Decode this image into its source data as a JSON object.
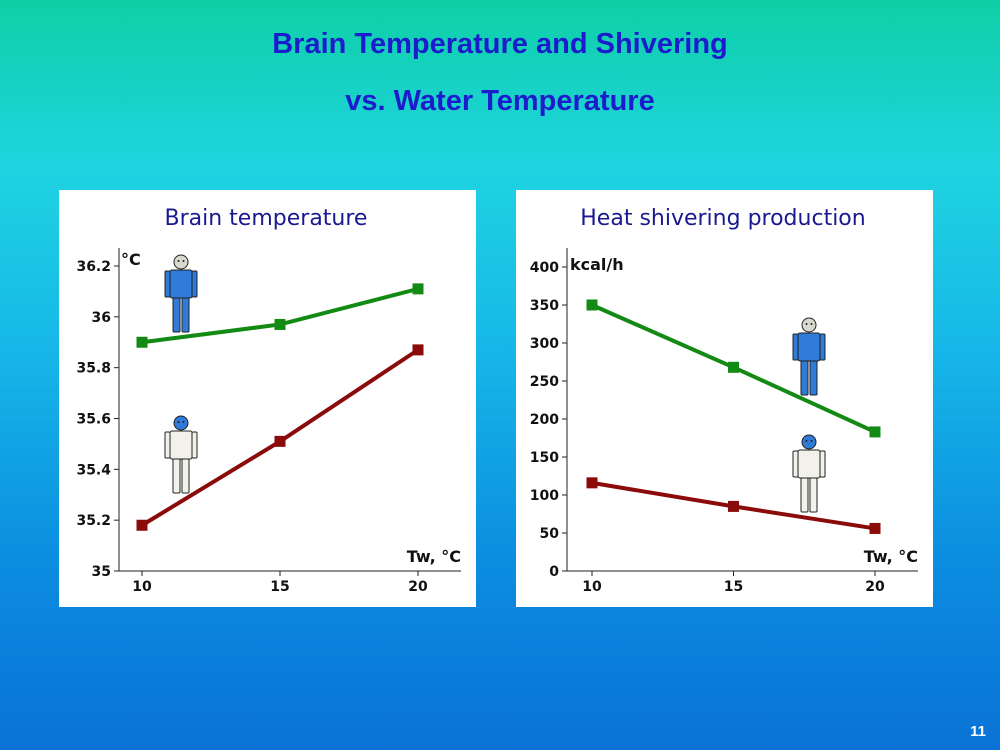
{
  "slide": {
    "title_line1": "Brain Temperature and Shivering",
    "title_line2": "vs. Water Temperature",
    "page_number": "11"
  },
  "colors": {
    "green_series": "#138a13",
    "red_series": "#8b0a0a",
    "figure_blue": "#2f7bd8",
    "figure_white": "#f2f2ea"
  },
  "chart_data": [
    {
      "type": "line",
      "title": "Brain temperature",
      "ylabel": "°C",
      "xlabel": "Tw, °C",
      "x": [
        10,
        15,
        20
      ],
      "xlim": [
        10,
        20
      ],
      "ylim": [
        35,
        36.2
      ],
      "yticks": [
        35,
        35.2,
        35.4,
        35.6,
        35.8,
        36,
        36.2
      ],
      "ytick_labels": [
        "35",
        "35.2",
        "35.4",
        "35.6",
        "35.8",
        "36",
        "36.2"
      ],
      "xticks": [
        10,
        15,
        20
      ],
      "xtick_labels": [
        "10",
        "15",
        "20"
      ],
      "grid": false,
      "series": [
        {
          "color": "green",
          "values": [
            35.9,
            35.97,
            36.11
          ]
        },
        {
          "color": "red",
          "values": [
            35.18,
            35.51,
            35.87
          ]
        }
      ]
    },
    {
      "type": "line",
      "title": "Heat shivering production",
      "ylabel": "kcal/h",
      "xlabel": "Tw, °C",
      "x": [
        10,
        15,
        20
      ],
      "xlim": [
        10,
        20
      ],
      "ylim": [
        0,
        400
      ],
      "yticks": [
        0,
        50,
        100,
        150,
        200,
        250,
        300,
        350,
        400
      ],
      "ytick_labels": [
        "0",
        "50",
        "100",
        "150",
        "200",
        "250",
        "300",
        "350",
        "400"
      ],
      "xticks": [
        10,
        15,
        20
      ],
      "xtick_labels": [
        "10",
        "15",
        "20"
      ],
      "grid": false,
      "series": [
        {
          "color": "green",
          "values": [
            350,
            268,
            183
          ]
        },
        {
          "color": "red",
          "values": [
            116,
            85,
            56
          ]
        }
      ]
    }
  ]
}
